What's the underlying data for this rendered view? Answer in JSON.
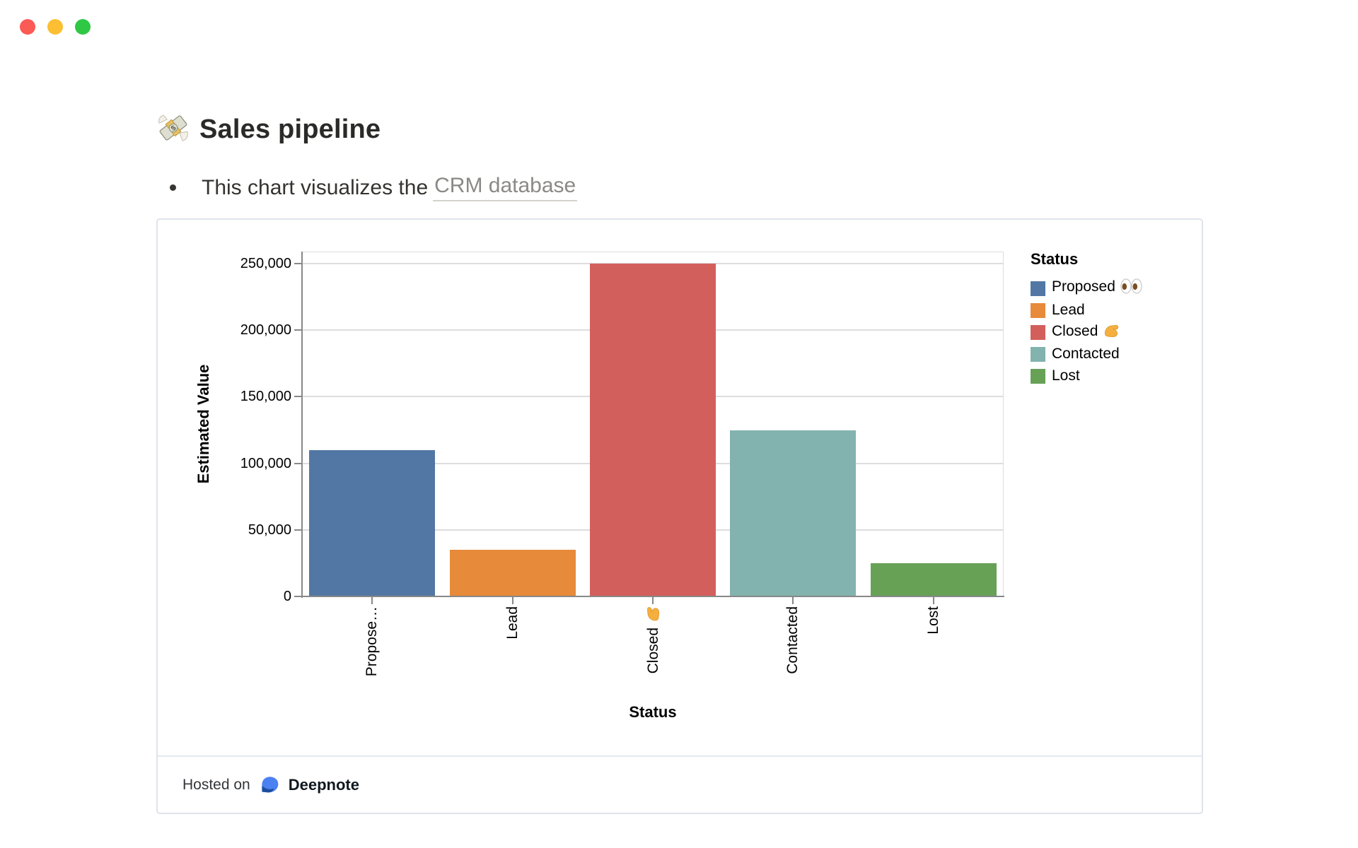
{
  "window": {
    "controls": [
      "close",
      "minimize",
      "zoom"
    ]
  },
  "page": {
    "title": "Sales pipeline",
    "title_icon": "money-with-wings-emoji",
    "bullet_text": "This chart visualizes the",
    "bullet_link": "CRM database"
  },
  "chart_data": {
    "type": "bar",
    "title": "",
    "xlabel": "Status",
    "ylabel": "Estimated Value",
    "categories": [
      "Proposed 👀",
      "Lead",
      "Closed 💪",
      "Contacted",
      "Lost"
    ],
    "values": [
      110000,
      35000,
      250000,
      125000,
      25000
    ],
    "bar_colors": [
      "#5377A4",
      "#E78A39",
      "#D35F5C",
      "#82B3AE",
      "#67A156"
    ],
    "x_ticks": [
      {
        "label": "Propose…",
        "emoji": null
      },
      {
        "label": "Lead",
        "emoji": null
      },
      {
        "label": "Closed",
        "emoji": "flexed-biceps"
      },
      {
        "label": "Contacted",
        "emoji": null
      },
      {
        "label": "Lost",
        "emoji": null
      }
    ],
    "y_ticks": [
      {
        "value": 0,
        "label": "0"
      },
      {
        "value": 50000,
        "label": "50,000"
      },
      {
        "value": 100000,
        "label": "100,000"
      },
      {
        "value": 150000,
        "label": "150,000"
      },
      {
        "value": 200000,
        "label": "200,000"
      },
      {
        "value": 250000,
        "label": "250,000"
      }
    ],
    "ylim": [
      0,
      250000
    ],
    "grid": true,
    "legend": {
      "title": "Status",
      "position": "right",
      "items": [
        {
          "label": "Proposed",
          "emoji": "eyes",
          "color": "#5377A4"
        },
        {
          "label": "Lead",
          "emoji": null,
          "color": "#E78A39"
        },
        {
          "label": "Closed",
          "emoji": "flexed-biceps",
          "color": "#D35F5C"
        },
        {
          "label": "Contacted",
          "emoji": null,
          "color": "#82B3AE"
        },
        {
          "label": "Lost",
          "emoji": null,
          "color": "#67A156"
        }
      ]
    },
    "colors": {
      "gridline": "#dddddd",
      "axis_line": "#888888",
      "tick": "#888888",
      "text": "#000000"
    }
  },
  "footer": {
    "hosted_on": "Hosted on",
    "brand": "Deepnote",
    "brand_icon": "deepnote-logo"
  }
}
